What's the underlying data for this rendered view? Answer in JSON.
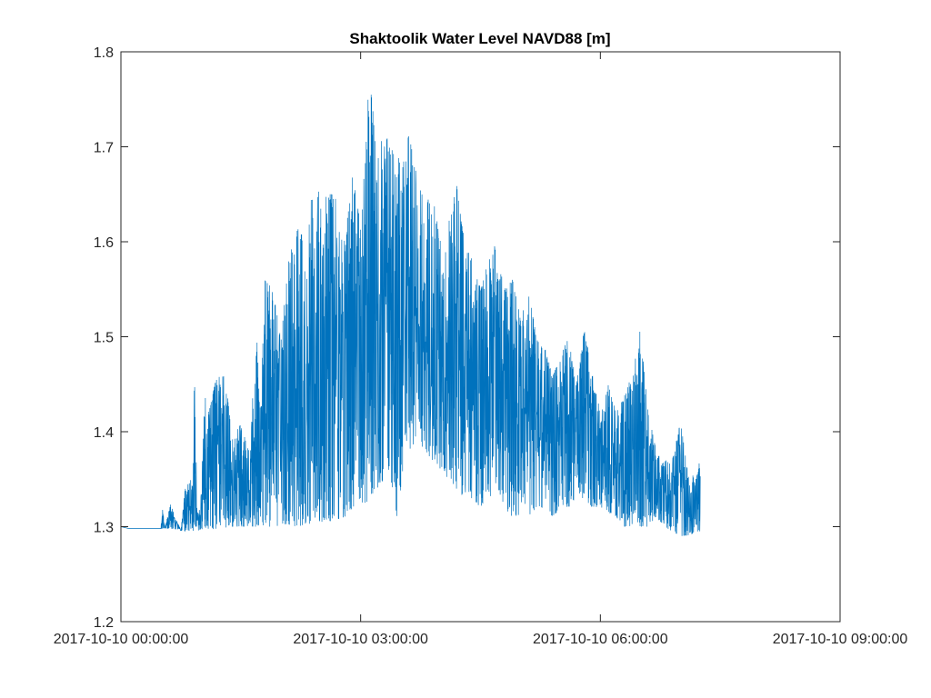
{
  "chart_data": {
    "type": "line",
    "title": "Shaktoolik Water Level NAVD88 [m]",
    "xlabel": "",
    "ylabel": "",
    "x_unit": "hours after 2017-10-10 00:00:00",
    "xlim": [
      0,
      9
    ],
    "ylim": [
      1.2,
      1.8
    ],
    "yticks": [
      1.2,
      1.3,
      1.4,
      1.5,
      1.6,
      1.7,
      1.8
    ],
    "yticklabels": [
      "1.2",
      "1.3",
      "1.4",
      "1.5",
      "1.6",
      "1.7",
      "1.8"
    ],
    "xticks": [
      0,
      3,
      6,
      9
    ],
    "xticklabels": [
      "2017-10-10 00:00:00",
      "2017-10-10 03:00:00",
      "2017-10-10 06:00:00",
      "2017-10-10 09:00:00"
    ],
    "grid": false,
    "box": true,
    "series": [
      {
        "color": "#0072BD",
        "x": [
          0.0,
          0.05,
          0.1,
          0.25,
          0.5,
          0.52,
          0.55,
          0.62,
          0.75,
          0.8,
          0.88,
          0.9,
          0.92,
          0.95,
          0.97,
          1.0,
          1.05,
          1.1,
          1.2,
          1.3,
          1.4,
          1.5,
          1.6,
          1.7,
          1.75,
          1.8,
          1.9,
          2.0,
          2.1,
          2.2,
          2.3,
          2.4,
          2.5,
          2.6,
          2.7,
          2.8,
          2.9,
          3.0,
          3.05,
          3.1,
          3.2,
          3.3,
          3.35,
          3.4,
          3.45,
          3.5,
          3.55,
          3.6,
          3.7,
          3.8,
          3.9,
          4.0,
          4.1,
          4.2,
          4.3,
          4.4,
          4.5,
          4.6,
          4.7,
          4.8,
          4.9,
          5.0,
          5.1,
          5.2,
          5.3,
          5.4,
          5.5,
          5.6,
          5.7,
          5.8,
          5.9,
          6.0,
          6.1,
          6.2,
          6.3,
          6.4,
          6.5,
          6.6,
          6.7,
          6.8,
          6.9,
          7.0,
          7.1,
          7.2,
          7.25
        ],
        "upper": [
          1.3,
          1.299,
          1.298,
          1.298,
          1.298,
          1.322,
          1.298,
          1.324,
          1.296,
          1.34,
          1.35,
          1.34,
          1.46,
          1.34,
          1.31,
          1.33,
          1.44,
          1.42,
          1.46,
          1.46,
          1.39,
          1.41,
          1.38,
          1.5,
          1.42,
          1.56,
          1.55,
          1.5,
          1.58,
          1.62,
          1.6,
          1.66,
          1.66,
          1.65,
          1.65,
          1.6,
          1.67,
          1.62,
          1.68,
          1.775,
          1.72,
          1.7,
          1.715,
          1.71,
          1.69,
          1.7,
          1.68,
          1.715,
          1.67,
          1.64,
          1.65,
          1.6,
          1.62,
          1.66,
          1.6,
          1.58,
          1.55,
          1.58,
          1.6,
          1.55,
          1.56,
          1.52,
          1.55,
          1.5,
          1.49,
          1.46,
          1.48,
          1.5,
          1.45,
          1.51,
          1.46,
          1.42,
          1.45,
          1.42,
          1.44,
          1.46,
          1.51,
          1.42,
          1.38,
          1.37,
          1.37,
          1.41,
          1.36,
          1.35,
          1.375
        ],
        "lower": [
          1.3,
          1.299,
          1.298,
          1.298,
          1.298,
          1.298,
          1.298,
          1.298,
          1.296,
          1.295,
          1.296,
          1.295,
          1.297,
          1.295,
          1.296,
          1.297,
          1.298,
          1.297,
          1.298,
          1.299,
          1.3,
          1.3,
          1.3,
          1.3,
          1.3,
          1.3,
          1.3,
          1.3,
          1.302,
          1.3,
          1.302,
          1.303,
          1.305,
          1.305,
          1.305,
          1.31,
          1.32,
          1.33,
          1.32,
          1.33,
          1.34,
          1.35,
          1.36,
          1.34,
          1.31,
          1.34,
          1.37,
          1.38,
          1.39,
          1.38,
          1.37,
          1.36,
          1.35,
          1.34,
          1.33,
          1.33,
          1.32,
          1.33,
          1.33,
          1.32,
          1.31,
          1.31,
          1.31,
          1.32,
          1.32,
          1.31,
          1.32,
          1.32,
          1.33,
          1.33,
          1.32,
          1.32,
          1.315,
          1.31,
          1.3,
          1.3,
          1.3,
          1.3,
          1.31,
          1.3,
          1.295,
          1.29,
          1.29,
          1.295,
          1.295
        ]
      }
    ]
  }
}
